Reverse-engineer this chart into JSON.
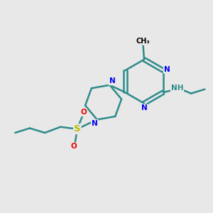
{
  "bg_color": "#e8e8e8",
  "bond_color": "#2e8b8b",
  "bond_width": 1.8,
  "n_color": "#0000ee",
  "s_color": "#bbbb00",
  "o_color": "#ee0000",
  "c_color": "#000000",
  "nh_color": "#2e8b8b",
  "font_size": 7.5,
  "figsize": [
    3.0,
    3.0
  ],
  "dpi": 100,
  "xlim": [
    0,
    10
  ],
  "ylim": [
    0,
    10
  ]
}
